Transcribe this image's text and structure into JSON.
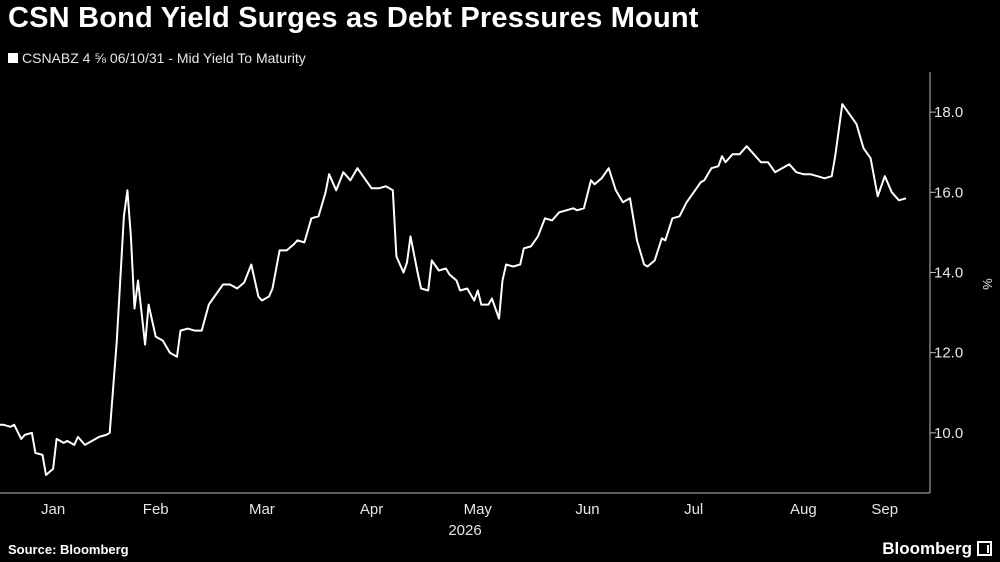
{
  "header": {
    "title": "CSN Bond Yield Surges as Debt Pressures Mount"
  },
  "footer": {
    "source": "Source: Bloomberg",
    "brand": "Bloomberg"
  },
  "chart_data": {
    "type": "line",
    "title": "CSN Bond Yield Surges as Debt Pressures Mount",
    "xlabel": "2026",
    "ylabel": "%",
    "xlim": [
      "2026-01-01",
      "2026-09-14"
    ],
    "ylim": [
      8.5,
      19.0
    ],
    "y_ticks": [
      10.0,
      12.0,
      14.0,
      16.0,
      18.0
    ],
    "y_tick_labels": [
      "10.0",
      "12.0",
      "14.0",
      "16.0",
      "18.0"
    ],
    "x_tick_labels": [
      {
        "label": "Jan",
        "date": "2026-01-16"
      },
      {
        "label": "Feb",
        "date": "2026-02-14"
      },
      {
        "label": "Mar",
        "date": "2026-03-16"
      },
      {
        "label": "Apr",
        "date": "2026-04-16"
      },
      {
        "label": "May",
        "date": "2026-05-16"
      },
      {
        "label": "Jun",
        "date": "2026-06-16"
      },
      {
        "label": "Jul",
        "date": "2026-07-16"
      },
      {
        "label": "Aug",
        "date": "2026-08-16"
      },
      {
        "label": "Sep",
        "date": "2026-09-08"
      }
    ],
    "grid": false,
    "legend": "top-left",
    "series": [
      {
        "name": "CSNABZ 4 ⅝ 06/10/31 - Mid Yield To Maturity",
        "color": "#ffffff",
        "points": [
          [
            "2026-01-01",
            10.2
          ],
          [
            "2026-01-02",
            10.2
          ],
          [
            "2026-01-04",
            10.15
          ],
          [
            "2026-01-05",
            10.2
          ],
          [
            "2026-01-07",
            9.85
          ],
          [
            "2026-01-08",
            9.95
          ],
          [
            "2026-01-10",
            10.0
          ],
          [
            "2026-01-11",
            9.5
          ],
          [
            "2026-01-13",
            9.45
          ],
          [
            "2026-01-14",
            8.95
          ],
          [
            "2026-01-16",
            9.1
          ],
          [
            "2026-01-17",
            9.85
          ],
          [
            "2026-01-19",
            9.75
          ],
          [
            "2026-01-20",
            9.8
          ],
          [
            "2026-01-22",
            9.7
          ],
          [
            "2026-01-23",
            9.9
          ],
          [
            "2026-01-25",
            9.7
          ],
          [
            "2026-01-26",
            9.75
          ],
          [
            "2026-01-28",
            9.85
          ],
          [
            "2026-01-29",
            9.9
          ],
          [
            "2026-01-31",
            9.95
          ],
          [
            "2026-02-01",
            10.0
          ],
          [
            "2026-02-03",
            12.3
          ],
          [
            "2026-02-05",
            15.4
          ],
          [
            "2026-02-06",
            16.05
          ],
          [
            "2026-02-07",
            14.9
          ],
          [
            "2026-02-08",
            13.1
          ],
          [
            "2026-02-09",
            13.8
          ],
          [
            "2026-02-11",
            12.2
          ],
          [
            "2026-02-12",
            13.2
          ],
          [
            "2026-02-14",
            12.4
          ],
          [
            "2026-02-16",
            12.3
          ],
          [
            "2026-02-18",
            12.0
          ],
          [
            "2026-02-20",
            11.9
          ],
          [
            "2026-02-21",
            12.55
          ],
          [
            "2026-02-23",
            12.6
          ],
          [
            "2026-02-25",
            12.55
          ],
          [
            "2026-02-27",
            12.55
          ],
          [
            "2026-03-01",
            13.2
          ],
          [
            "2026-03-03",
            13.45
          ],
          [
            "2026-03-05",
            13.7
          ],
          [
            "2026-03-07",
            13.7
          ],
          [
            "2026-03-09",
            13.6
          ],
          [
            "2026-03-11",
            13.75
          ],
          [
            "2026-03-13",
            14.2
          ],
          [
            "2026-03-15",
            13.4
          ],
          [
            "2026-03-16",
            13.3
          ],
          [
            "2026-03-18",
            13.4
          ],
          [
            "2026-03-19",
            13.6
          ],
          [
            "2026-03-21",
            14.55
          ],
          [
            "2026-03-23",
            14.55
          ],
          [
            "2026-03-25",
            14.7
          ],
          [
            "2026-03-26",
            14.8
          ],
          [
            "2026-03-28",
            14.75
          ],
          [
            "2026-03-30",
            15.35
          ],
          [
            "2026-04-01",
            15.4
          ],
          [
            "2026-04-03",
            16.0
          ],
          [
            "2026-04-04",
            16.45
          ],
          [
            "2026-04-06",
            16.05
          ],
          [
            "2026-04-08",
            16.5
          ],
          [
            "2026-04-10",
            16.3
          ],
          [
            "2026-04-12",
            16.6
          ],
          [
            "2026-04-14",
            16.35
          ],
          [
            "2026-04-16",
            16.1
          ],
          [
            "2026-04-18",
            16.1
          ],
          [
            "2026-04-20",
            16.15
          ],
          [
            "2026-04-22",
            16.05
          ],
          [
            "2026-04-23",
            14.4
          ],
          [
            "2026-04-25",
            14.0
          ],
          [
            "2026-04-26",
            14.25
          ],
          [
            "2026-04-27",
            14.9
          ],
          [
            "2026-04-29",
            14.0
          ],
          [
            "2026-04-30",
            13.6
          ],
          [
            "2026-05-02",
            13.55
          ],
          [
            "2026-05-03",
            14.3
          ],
          [
            "2026-05-05",
            14.05
          ],
          [
            "2026-05-07",
            14.1
          ],
          [
            "2026-05-08",
            13.95
          ],
          [
            "2026-05-10",
            13.8
          ],
          [
            "2026-05-11",
            13.55
          ],
          [
            "2026-05-13",
            13.6
          ],
          [
            "2026-05-15",
            13.3
          ],
          [
            "2026-05-16",
            13.55
          ],
          [
            "2026-05-17",
            13.2
          ],
          [
            "2026-05-19",
            13.2
          ],
          [
            "2026-05-20",
            13.35
          ],
          [
            "2026-05-22",
            12.85
          ],
          [
            "2026-05-23",
            13.8
          ],
          [
            "2026-05-24",
            14.2
          ],
          [
            "2026-05-26",
            14.15
          ],
          [
            "2026-05-28",
            14.2
          ],
          [
            "2026-05-29",
            14.6
          ],
          [
            "2026-05-31",
            14.65
          ],
          [
            "2026-06-02",
            14.9
          ],
          [
            "2026-06-04",
            15.35
          ],
          [
            "2026-06-06",
            15.3
          ],
          [
            "2026-06-08",
            15.5
          ],
          [
            "2026-06-10",
            15.55
          ],
          [
            "2026-06-12",
            15.6
          ],
          [
            "2026-06-13",
            15.55
          ],
          [
            "2026-06-15",
            15.6
          ],
          [
            "2026-06-17",
            16.3
          ],
          [
            "2026-06-18",
            16.2
          ],
          [
            "2026-06-20",
            16.35
          ],
          [
            "2026-06-22",
            16.6
          ],
          [
            "2026-06-24",
            16.05
          ],
          [
            "2026-06-26",
            15.75
          ],
          [
            "2026-06-28",
            15.85
          ],
          [
            "2026-06-30",
            14.8
          ],
          [
            "2026-07-02",
            14.2
          ],
          [
            "2026-07-03",
            14.15
          ],
          [
            "2026-07-05",
            14.3
          ],
          [
            "2026-07-07",
            14.85
          ],
          [
            "2026-07-08",
            14.8
          ],
          [
            "2026-07-10",
            15.35
          ],
          [
            "2026-07-12",
            15.4
          ],
          [
            "2026-07-14",
            15.75
          ],
          [
            "2026-07-16",
            16.0
          ],
          [
            "2026-07-18",
            16.25
          ],
          [
            "2026-07-19",
            16.3
          ],
          [
            "2026-07-21",
            16.6
          ],
          [
            "2026-07-23",
            16.65
          ],
          [
            "2026-07-24",
            16.9
          ],
          [
            "2026-07-25",
            16.75
          ],
          [
            "2026-07-27",
            16.95
          ],
          [
            "2026-07-29",
            16.95
          ],
          [
            "2026-07-31",
            17.15
          ],
          [
            "2026-08-02",
            16.95
          ],
          [
            "2026-08-04",
            16.75
          ],
          [
            "2026-08-06",
            16.75
          ],
          [
            "2026-08-08",
            16.5
          ],
          [
            "2026-08-10",
            16.6
          ],
          [
            "2026-08-12",
            16.7
          ],
          [
            "2026-08-14",
            16.5
          ],
          [
            "2026-08-16",
            16.45
          ],
          [
            "2026-08-18",
            16.45
          ],
          [
            "2026-08-20",
            16.4
          ],
          [
            "2026-08-22",
            16.35
          ],
          [
            "2026-08-24",
            16.4
          ],
          [
            "2026-08-25",
            16.9
          ],
          [
            "2026-08-27",
            18.2
          ],
          [
            "2026-08-29",
            17.95
          ],
          [
            "2026-08-31",
            17.7
          ],
          [
            "2026-09-02",
            17.1
          ],
          [
            "2026-09-04",
            16.85
          ],
          [
            "2026-09-06",
            15.9
          ],
          [
            "2026-09-08",
            16.4
          ],
          [
            "2026-09-10",
            16.0
          ],
          [
            "2026-09-12",
            15.8
          ],
          [
            "2026-09-14",
            15.85
          ]
        ]
      }
    ]
  }
}
